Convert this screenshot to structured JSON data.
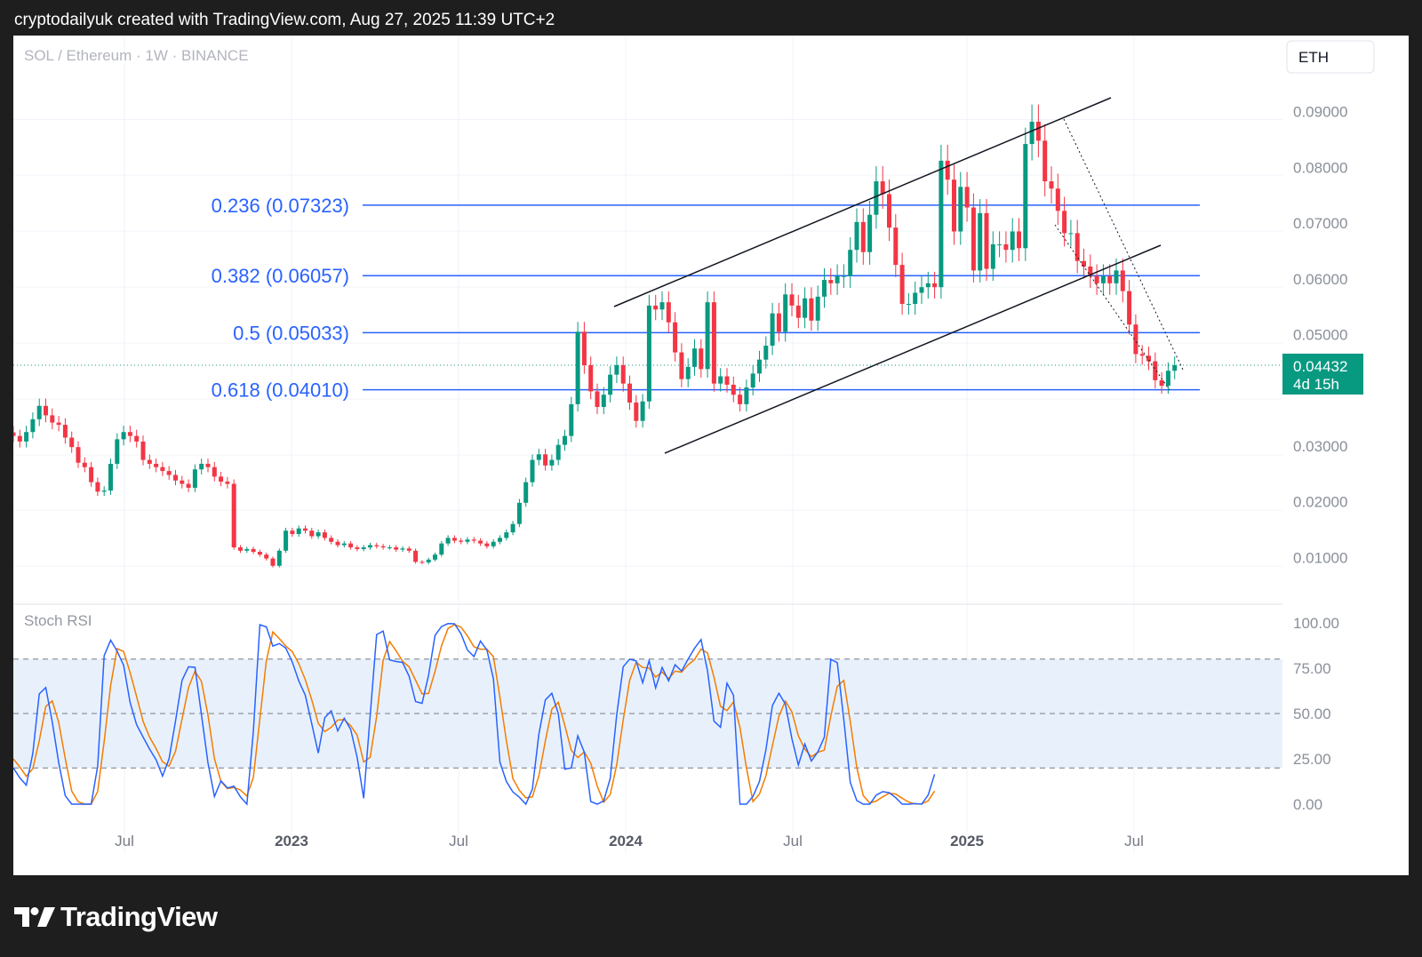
{
  "header_text": "cryptodailyuk created with TradingView.com, Aug 27, 2025 11:39 UTC+2",
  "footer_logo_text": "TradingView",
  "colors": {
    "up": "#089981",
    "down": "#f23645",
    "fib": "#2962ff",
    "k_line": "#2962ff",
    "d_line": "#f57c00",
    "band": "#e8f1fb"
  },
  "chart_data": [
    {
      "type": "candlestick",
      "title": "SOL / Ethereum · 1W · BINANCE",
      "currency_button": "ETH",
      "x_ticks": [
        "Jul",
        "2023",
        "Jul",
        "2024",
        "Jul",
        "2025",
        "Jul"
      ],
      "x_ticks_bold": [
        false,
        true,
        false,
        true,
        false,
        true,
        false
      ],
      "y_ticks": [
        "0.09000",
        "0.08000",
        "0.07000",
        "0.06000",
        "0.05000",
        "0.03000",
        "0.02000",
        "0.01000"
      ],
      "ylim": [
        0.0,
        0.097
      ],
      "last_price": {
        "value": "0.04432",
        "countdown": "4d 15h"
      },
      "fib_levels": [
        {
          "label": "0.236 (0.07323)",
          "value": 0.07323
        },
        {
          "label": "0.382 (0.06057)",
          "value": 0.06057
        },
        {
          "label": "0.5 (0.05033)",
          "value": 0.05033
        },
        {
          "label": "0.618 (0.04010)",
          "value": 0.0401
        }
      ],
      "series": [
        {
          "name": "close",
          "values": [
            0.0318,
            0.0308,
            0.0325,
            0.0348,
            0.0372,
            0.0355,
            0.0342,
            0.0338,
            0.0315,
            0.0298,
            0.027,
            0.0262,
            0.0235,
            0.0218,
            0.022,
            0.0268,
            0.0312,
            0.0325,
            0.0318,
            0.0308,
            0.0275,
            0.0268,
            0.0262,
            0.0255,
            0.0248,
            0.0238,
            0.0232,
            0.0225,
            0.0258,
            0.0268,
            0.0262,
            0.0245,
            0.0236,
            0.0232,
            0.0118,
            0.0112,
            0.0115,
            0.011,
            0.0105,
            0.0098,
            0.0085,
            0.0112,
            0.0148,
            0.0142,
            0.0152,
            0.0148,
            0.0138,
            0.0145,
            0.0135,
            0.0128,
            0.0122,
            0.0125,
            0.0118,
            0.0115,
            0.0118,
            0.0122,
            0.012,
            0.0118,
            0.0118,
            0.0114,
            0.0116,
            0.0112,
            0.0092,
            0.0091,
            0.0096,
            0.0105,
            0.0125,
            0.0135,
            0.013,
            0.0128,
            0.0132,
            0.013,
            0.0125,
            0.012,
            0.0128,
            0.0135,
            0.0145,
            0.016,
            0.0198,
            0.0235,
            0.0275,
            0.0285,
            0.0265,
            0.0275,
            0.0302,
            0.0318,
            0.0375,
            0.0505,
            0.0445,
            0.0398,
            0.037,
            0.0392,
            0.0428,
            0.0445,
            0.0412,
            0.0378,
            0.0345,
            0.038,
            0.0552,
            0.0545,
            0.0558,
            0.0522,
            0.0468,
            0.042,
            0.0442,
            0.0475,
            0.0438,
            0.0558,
            0.0412,
            0.0425,
            0.041,
            0.0392,
            0.0375,
            0.0405,
            0.043,
            0.0455,
            0.048,
            0.0538,
            0.0505,
            0.0572,
            0.0552,
            0.053,
            0.0565,
            0.0525,
            0.0568,
            0.0598,
            0.0592,
            0.0605,
            0.0605,
            0.0652,
            0.0702,
            0.0648,
            0.0715,
            0.0775,
            0.0752,
            0.0692,
            0.0625,
            0.0555,
            0.0555,
            0.0575,
            0.0585,
            0.0592,
            0.0585,
            0.0812,
            0.0778,
            0.0685,
            0.0765,
            0.0728,
            0.0615,
            0.0718,
            0.0618,
            0.0662,
            0.0662,
            0.0652,
            0.0685,
            0.0655,
            0.0842,
            0.0882,
            0.0848,
            0.0775,
            0.0762,
            0.0722,
            0.0682,
            0.0682,
            0.0632,
            0.0622,
            0.0605,
            0.0592,
            0.0605,
            0.0592,
            0.0615,
            0.0578,
            0.0518,
            0.0465,
            0.0462,
            0.0452,
            0.0418,
            0.0408,
            0.0435,
            0.0445
          ]
        },
        {
          "name": "%K",
          "values": [
            20.0,
            14.5,
            10.5,
            28.0,
            60.9,
            64.3,
            45.4,
            22.8,
            4.7,
            0.0,
            0.0,
            0.0,
            0.0,
            21.0,
            81.9,
            90.5,
            84.4,
            76.6,
            56.1,
            43.8,
            37.0,
            30.4,
            24.5,
            15.5,
            25.0,
            45.9,
            68.3,
            75.8,
            75.5,
            49.3,
            22.8,
            4.2,
            12.9,
            8.9,
            9.9,
            4.0,
            0.0,
            40.4,
            99.0,
            97.8,
            87.2,
            88.6,
            86.1,
            78.4,
            68.0,
            60.1,
            44.3,
            28.2,
            47.7,
            51.5,
            40.4,
            47.4,
            41.2,
            25.7,
            3.3,
            48.8,
            93.6,
            95.5,
            79.6,
            78.7,
            78.2,
            70.6,
            56.6,
            55.6,
            71.1,
            93.1,
            98.0,
            99.6,
            99.5,
            94.0,
            85.0,
            81.4,
            90.0,
            85.0,
            69.0,
            23.2,
            12.5,
            6.7,
            3.8,
            0.0,
            8.3,
            38.6,
            57.5,
            61.2,
            49.9,
            19.3,
            20.0,
            37.7,
            28.7,
            1.4,
            0.0,
            1.8,
            14.2,
            49.2,
            75.8,
            80.0,
            79.0,
            67.0,
            79.2,
            64.1,
            75.4,
            68.0,
            76.9,
            73.4,
            80.0,
            86.0,
            90.8,
            73.5,
            45.8,
            42.4,
            66.7,
            60.1,
            0.0,
            0.0,
            4.2,
            12.5,
            30.0,
            54.4,
            61.2,
            55.2,
            36.2,
            21.6,
            33.2,
            23.8,
            28.8,
            36.9,
            80.0,
            78.0,
            46.8,
            12.0,
            2.0,
            0.0,
            0.0,
            5.0,
            6.9,
            6.3,
            3.6,
            0.0,
            0.0,
            0.3,
            0.0,
            5.0,
            16.5
          ]
        },
        {
          "name": "%D",
          "values": [
            25.0,
            20.5,
            15.4,
            19.6,
            35.0,
            53.8,
            57.0,
            45.0,
            25.2,
            7.2,
            1.3,
            0.0,
            0.0,
            7.0,
            34.5,
            65.5,
            85.8,
            84.2,
            72.6,
            59.4,
            45.7,
            37.0,
            30.7,
            23.4,
            21.0,
            29.2,
            46.9,
            64.3,
            73.4,
            67.7,
            49.1,
            25.1,
            12.5,
            8.6,
            9.2,
            7.8,
            4.5,
            14.8,
            47.1,
            79.1,
            95.0,
            91.3,
            87.2,
            84.1,
            77.5,
            68.7,
            57.5,
            44.6,
            40.0,
            42.4,
            46.4,
            46.6,
            43.3,
            38.1,
            23.3,
            25.9,
            48.5,
            79.3,
            89.7,
            84.6,
            78.8,
            75.8,
            68.4,
            60.9,
            61.1,
            73.3,
            87.4,
            96.9,
            99.0,
            97.7,
            92.8,
            86.8,
            85.5,
            85.5,
            81.3,
            59.0,
            34.9,
            14.1,
            7.6,
            3.5,
            4.0,
            15.6,
            34.8,
            52.4,
            56.2,
            43.5,
            29.7,
            25.7,
            28.8,
            22.6,
            10.0,
            1.1,
            5.3,
            21.7,
            46.4,
            68.4,
            78.3,
            75.4,
            75.1,
            70.1,
            72.9,
            69.2,
            73.4,
            72.8,
            76.8,
            79.8,
            85.6,
            83.4,
            70.0,
            53.9,
            51.6,
            56.4,
            42.3,
            20.0,
            1.4,
            5.6,
            15.6,
            32.3,
            48.5,
            56.9,
            50.9,
            37.7,
            30.3,
            26.2,
            28.6,
            29.8,
            48.6,
            65.0,
            68.3,
            45.6,
            20.3,
            4.7,
            0.7,
            1.7,
            4.0,
            6.1,
            5.6,
            3.3,
            1.2,
            0.1,
            0.1,
            1.8,
            7.2
          ]
        }
      ]
    },
    {
      "type": "line",
      "title": "Stoch RSI",
      "y_ticks": [
        "100.00",
        "75.00",
        "50.00",
        "25.00",
        "0.00"
      ],
      "ylim": [
        0,
        100
      ],
      "bands": [
        20,
        50,
        80
      ]
    }
  ]
}
